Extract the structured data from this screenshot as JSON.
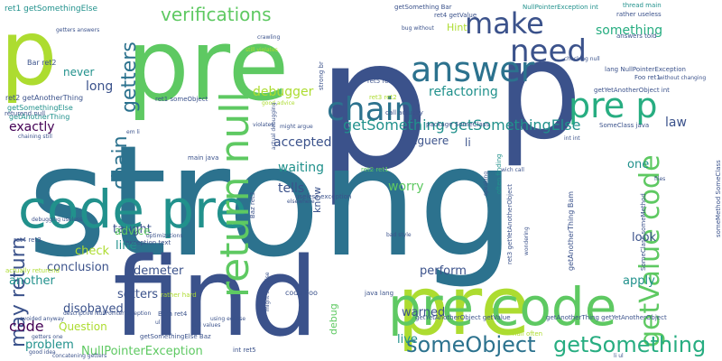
{
  "word_cloud": {
    "background": "#ffffff",
    "palette": [
      "#440154",
      "#3b528b",
      "#2c728e",
      "#21918c",
      "#27ad81",
      "#5ec962",
      "#addc30"
    ],
    "words": [
      {
        "text": "p",
        "color": "#3b528b"
      },
      {
        "text": "strong",
        "color": "#2c728e"
      },
      {
        "text": "find",
        "color": "#3b528b"
      },
      {
        "text": "pre",
        "color": "#5ec962"
      },
      {
        "text": "p",
        "color": "#addc30"
      },
      {
        "text": "pre",
        "color": "#addc30"
      },
      {
        "text": "code pre",
        "color": "#21918c"
      },
      {
        "text": "pre code",
        "color": "#5ec962"
      },
      {
        "text": "p",
        "color": "#3b528b"
      },
      {
        "text": "return null",
        "color": "#5ec962"
      },
      {
        "text": "answer",
        "color": "#2c728e"
      },
      {
        "text": "chain",
        "color": "#2c728e"
      },
      {
        "text": "make",
        "color": "#3b528b"
      },
      {
        "text": "need",
        "color": "#3b528b"
      },
      {
        "text": "pre p",
        "color": "#27ad81"
      },
      {
        "text": "getValue code",
        "color": "#5ec962"
      },
      {
        "text": "may return",
        "color": "#3b528b"
      },
      {
        "text": "getters",
        "color": "#2c728e"
      },
      {
        "text": "chain",
        "color": "#2c728e"
      },
      {
        "text": "someObject",
        "color": "#2c728e"
      },
      {
        "text": "getSomething",
        "color": "#27ad81"
      },
      {
        "text": "verifications",
        "color": "#5ec962"
      },
      {
        "text": "getSomething getSomethingElse",
        "color": "#21918c"
      },
      {
        "text": "refactoring",
        "color": "#21918c"
      },
      {
        "text": "something",
        "color": "#27ad81"
      },
      {
        "text": "law",
        "color": "#3b528b"
      },
      {
        "text": "accepted",
        "color": "#3b528b"
      },
      {
        "text": "debugger",
        "color": "#addc30"
      },
      {
        "text": "figuere",
        "color": "#3b528b"
      },
      {
        "text": "waiting",
        "color": "#21918c"
      },
      {
        "text": "tells",
        "color": "#3b528b"
      },
      {
        "text": "worry",
        "color": "#5ec962"
      },
      {
        "text": "exactly",
        "color": "#440154"
      },
      {
        "text": "long",
        "color": "#3b528b"
      },
      {
        "text": "never",
        "color": "#21918c"
      },
      {
        "text": "conclusion",
        "color": "#3b528b"
      },
      {
        "text": "setters",
        "color": "#3b528b"
      },
      {
        "text": "disobayed",
        "color": "#3b528b"
      },
      {
        "text": "code",
        "color": "#440154"
      },
      {
        "text": "Question",
        "color": "#addc30"
      },
      {
        "text": "problem",
        "color": "#21918c"
      },
      {
        "text": "NullPointerException",
        "color": "#5ec962"
      },
      {
        "text": "taught",
        "color": "#3b528b"
      },
      {
        "text": "line",
        "color": "#21918c"
      },
      {
        "text": "advice",
        "color": "#5ec962"
      },
      {
        "text": "check",
        "color": "#addc30"
      },
      {
        "text": "another",
        "color": "#21918c"
      },
      {
        "text": "demeter",
        "color": "#3b528b"
      },
      {
        "text": "perform",
        "color": "#3b528b"
      },
      {
        "text": "apply",
        "color": "#21918c"
      },
      {
        "text": "look",
        "color": "#3b528b"
      },
      {
        "text": "one",
        "color": "#21918c"
      },
      {
        "text": "warned",
        "color": "#3b528b"
      },
      {
        "text": "live",
        "color": "#21918c"
      },
      {
        "text": "debug",
        "color": "#5ec962"
      },
      {
        "text": "know",
        "color": "#3b528b"
      },
      {
        "text": "li",
        "color": "#3b528b"
      },
      {
        "text": "Hint",
        "color": "#addc30"
      },
      {
        "text": "ret1 getSomethingElse",
        "color": "#21918c"
      },
      {
        "text": "Bar ret2",
        "color": "#3b528b"
      },
      {
        "text": "ret2 getAnotherThing",
        "color": "#3b528b"
      },
      {
        "text": "getSomethingElse",
        "color": "#21918c"
      },
      {
        "text": "getAnotherThing",
        "color": "#21918c"
      },
      {
        "text": "returend null",
        "color": "#3b528b"
      },
      {
        "text": "ret1 someObject",
        "color": "#3b528b"
      },
      {
        "text": "Foo ret1",
        "color": "#3b528b"
      },
      {
        "text": "lang NullPointerException",
        "color": "#3b528b"
      },
      {
        "text": "thread main",
        "color": "#21918c"
      },
      {
        "text": "rather useless",
        "color": "#3b528b"
      },
      {
        "text": "getSomething Bar",
        "color": "#3b528b"
      },
      {
        "text": "ret4 getValue",
        "color": "#3b528b"
      },
      {
        "text": "call actually",
        "color": "#3b528b"
      },
      {
        "text": "package SomeClass",
        "color": "#3b528b"
      },
      {
        "text": "SomeClass java",
        "color": "#3b528b"
      },
      {
        "text": "main java",
        "color": "#3b528b"
      },
      {
        "text": "ret2 ret1",
        "color": "#5ec962"
      },
      {
        "text": "ret3 ret2",
        "color": "#addc30"
      },
      {
        "text": "ret5 ret4",
        "color": "#3b528b"
      },
      {
        "text": "ret4 ret3",
        "color": "#3b528b"
      },
      {
        "text": "actually returend",
        "color": "#addc30"
      },
      {
        "text": "exception text",
        "color": "#3b528b"
      },
      {
        "text": "rather hard",
        "color": "#addc30"
      },
      {
        "text": "code Foo",
        "color": "#3b528b"
      },
      {
        "text": "java lang",
        "color": "#3b528b"
      },
      {
        "text": "Bam ret4",
        "color": "#3b528b"
      },
      {
        "text": "getSomethingElse Baz",
        "color": "#3b528b"
      },
      {
        "text": "getYetAnotherObject getValue",
        "color": "#3b528b"
      },
      {
        "text": "getAnotherThing getYetAnotherObject",
        "color": "#3b528b"
      },
      {
        "text": "int ret5",
        "color": "#3b528b"
      },
      {
        "text": "null often",
        "color": "#addc30"
      },
      {
        "text": "useless exception",
        "color": "#3b528b"
      },
      {
        "text": "SomeClass someMethod",
        "color": "#3b528b"
      },
      {
        "text": "someMethod SomeClass",
        "color": "#3b528b"
      },
      {
        "text": "getYetAnotherObject int",
        "color": "#3b528b"
      },
      {
        "text": "getAnotherThing Bam",
        "color": "#3b528b"
      },
      {
        "text": "Baz ret3",
        "color": "#3b528b"
      },
      {
        "text": "often finding",
        "color": "#21918c"
      },
      {
        "text": "ret3 getYetAnotherObject",
        "color": "#3b528b"
      },
      {
        "text": "strong br",
        "color": "#3b528b"
      },
      {
        "text": "NullPointerException int",
        "color": "#21918c"
      },
      {
        "text": "answers told",
        "color": "#3b528b"
      },
      {
        "text": "bug without",
        "color": "#3b528b"
      },
      {
        "text": "checking null",
        "color": "#3b528b"
      },
      {
        "text": "still violates",
        "color": "#addc30"
      },
      {
        "text": "getters answers",
        "color": "#3b528b"
      },
      {
        "text": "concatening getters",
        "color": "#3b528b"
      },
      {
        "text": "good advice",
        "color": "#addc30"
      },
      {
        "text": "might argue",
        "color": "#3b528b"
      },
      {
        "text": "int int",
        "color": "#3b528b"
      },
      {
        "text": "wich call",
        "color": "#3b528b"
      },
      {
        "text": "descriptive NullPointerException",
        "color": "#3b528b"
      },
      {
        "text": "li ul",
        "color": "#3b528b"
      },
      {
        "text": "ul li",
        "color": "#3b528b"
      },
      {
        "text": "using eclipse",
        "color": "#3b528b"
      },
      {
        "text": "bad style",
        "color": "#3b528b"
      },
      {
        "text": "without changing",
        "color": "#3b528b"
      },
      {
        "text": "elsewhere",
        "color": "#3b528b"
      },
      {
        "text": "optimizations",
        "color": "#3b528b"
      },
      {
        "text": "debugging useless",
        "color": "#3b528b"
      },
      {
        "text": "wondering",
        "color": "#3b528b"
      },
      {
        "text": "avoided anyway",
        "color": "#3b528b"
      },
      {
        "text": "getters one",
        "color": "#3b528b"
      },
      {
        "text": "good idea",
        "color": "#3b528b"
      },
      {
        "text": "chaining still",
        "color": "#3b528b"
      },
      {
        "text": "em li",
        "color": "#3b528b"
      },
      {
        "text": "null values",
        "color": "#3b528b"
      },
      {
        "text": "might surprise",
        "color": "#3b528b"
      },
      {
        "text": "actual debugging",
        "color": "#3b528b"
      },
      {
        "text": "speaking",
        "color": "#3b528b"
      },
      {
        "text": "violates",
        "color": "#3b528b"
      },
      {
        "text": "crawling",
        "color": "#3b528b"
      },
      {
        "text": "files",
        "color": "#3b528b"
      }
    ]
  }
}
